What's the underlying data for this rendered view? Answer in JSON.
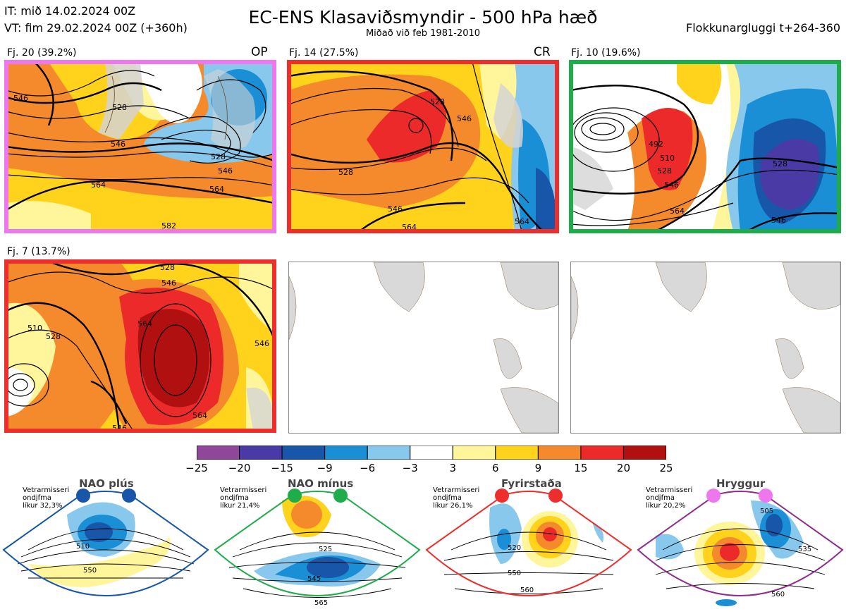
{
  "header": {
    "init_time": "IT: mið 14.02.2024 00Z",
    "valid_time": "VT: fim 29.02.2024 00Z  (+360h)",
    "title": "EC-ENS Klasaviðsmyndir - 500 hPa hæð",
    "subtitle": "Miðað við feb 1981-2010",
    "window": "Flokkunargluggi t+264-360"
  },
  "clusters": [
    {
      "label": "Fj. 20 (39.2%)",
      "tag": "OP",
      "frame_color": "#ee77ee",
      "contours": [
        "546",
        "528",
        "546",
        "528",
        "546",
        "564",
        "564",
        "582"
      ]
    },
    {
      "label": "Fj. 14 (27.5%)",
      "tag": "CR",
      "frame_color": "#ee2d2d",
      "contours": [
        "528",
        "546",
        "528",
        "546",
        "564",
        "564"
      ]
    },
    {
      "label": "Fj. 10 (19.6%)",
      "tag": "",
      "frame_color": "#1fac4a",
      "contours": [
        "492",
        "510",
        "528",
        "546",
        "564",
        "528",
        "546"
      ]
    },
    {
      "label": "Fj. 7 (13.7%)",
      "tag": "",
      "frame_color": "#ee2d2d",
      "contours": [
        "528",
        "510",
        "528",
        "546",
        "564",
        "546",
        "564",
        "546"
      ]
    }
  ],
  "colorbar": {
    "ticks": [
      "−25",
      "−20",
      "−15",
      "−9",
      "−6",
      "−3",
      "3",
      "6",
      "9",
      "15",
      "20",
      "25"
    ],
    "colors": [
      "#8e4799",
      "#4a3aa6",
      "#1756a8",
      "#1a8fd6",
      "#88c8ec",
      "#ffffff",
      "#fff59a",
      "#ffd21c",
      "#f58a2c",
      "#ec2a2a",
      "#b01010"
    ]
  },
  "regimes": [
    {
      "name": "NAO plús",
      "note_lines": [
        "Vetrarmisseri",
        "ondjfma",
        "líkur 32,3%"
      ],
      "color": "#1756a8",
      "contours": [
        "510",
        "550"
      ]
    },
    {
      "name": "NAO mínus",
      "note_lines": [
        "Vetrarmisseri",
        "ondjfma",
        "líkur 21,4%"
      ],
      "color": "#1fac4a",
      "contours": [
        "525",
        "545",
        "565"
      ]
    },
    {
      "name": "Fyrirstaða",
      "note_lines": [
        "Vetrarmisseri",
        "ondjfma",
        "líkur 26,1%"
      ],
      "color": "#ee2d2d",
      "contours": [
        "520",
        "550",
        "560"
      ]
    },
    {
      "name": "Hryggur",
      "note_lines": [
        "Vetrarmisseri",
        "ondjfma",
        "líkur 20,2%"
      ],
      "color": "#ee77ee",
      "contours": [
        "505",
        "535",
        "560"
      ]
    }
  ]
}
